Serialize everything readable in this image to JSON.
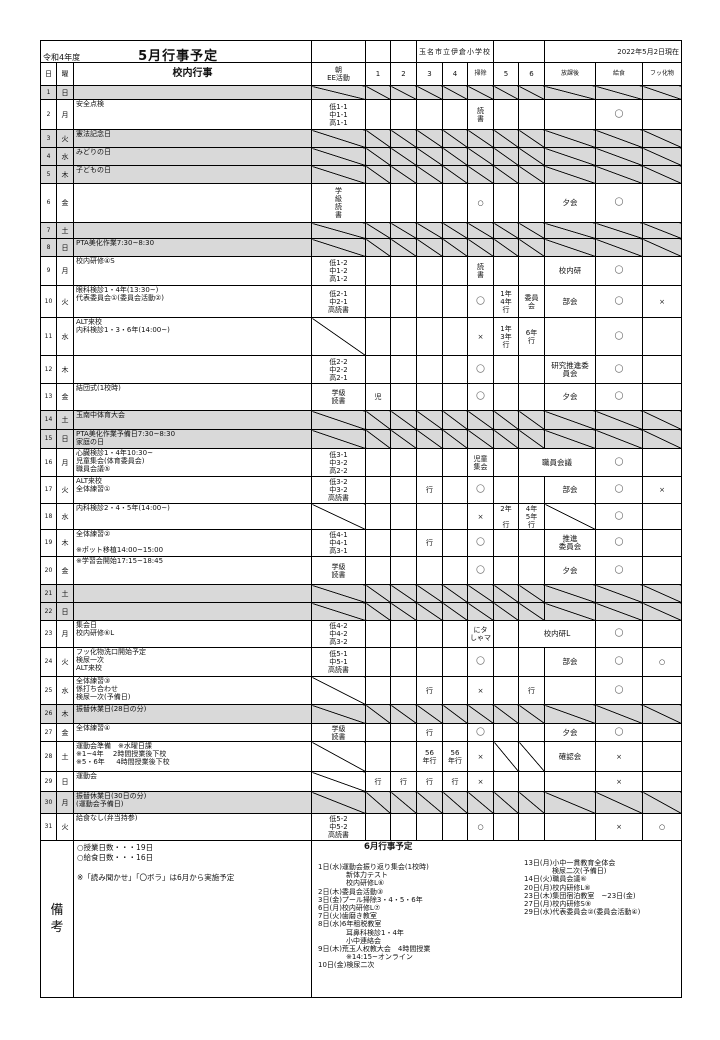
{
  "header": {
    "fiscal_year": "令和4年度",
    "title": "5月行事予定",
    "school": "玉名市立伊倉小学校",
    "as_of": "2022年5月2日現在"
  },
  "columns": {
    "day": "日",
    "dow": "曜",
    "events": "校内行事",
    "morning": "朝\nEE活動",
    "p1": "1",
    "p2": "2",
    "p3": "3",
    "p4": "4",
    "clean": "掃除",
    "p5": "5",
    "p6": "6",
    "after": "放課後",
    "lunch": "給食",
    "fluoride": "フッ化物"
  },
  "colors": {
    "holiday_row": "#d9d9d9",
    "border": "#000000"
  },
  "rows": [
    {
      "day": "1",
      "dow": "日",
      "holiday": true,
      "events": []
    },
    {
      "day": "2",
      "dow": "月",
      "events": [
        "安全点検"
      ],
      "morning": "低1-1\n中1-1\n高1-1",
      "clean": "読\n書",
      "lunch": "〇"
    },
    {
      "day": "3",
      "dow": "火",
      "holiday": true,
      "events": [
        "憲法記念日"
      ]
    },
    {
      "day": "4",
      "dow": "水",
      "holiday": true,
      "events": [
        "みどりの日"
      ]
    },
    {
      "day": "5",
      "dow": "木",
      "holiday": true,
      "events": [
        "子どもの日"
      ]
    },
    {
      "day": "6",
      "dow": "金",
      "events": [],
      "morning": "学\n級\n読\n書",
      "clean": "○",
      "after": "夕会",
      "lunch": "〇"
    },
    {
      "day": "7",
      "dow": "土",
      "holiday": true,
      "events": []
    },
    {
      "day": "8",
      "dow": "日",
      "holiday": true,
      "events": [
        "PTA美化作業7:30~8:30"
      ]
    },
    {
      "day": "9",
      "dow": "月",
      "events": [
        "校内研修④S"
      ],
      "morning": "低1-2\n中1-2\n高1-2",
      "clean": "読\n書",
      "after": "校内研",
      "lunch": "〇"
    },
    {
      "day": "10",
      "dow": "火",
      "events": [
        "眼科検診1・4年(13:30~)",
        "代表委員会①(委員会活動②)"
      ],
      "morning": "低2-1\n中2-1\n高読書",
      "clean": "〇",
      "p5": "1年\n4年\n行",
      "p6": "委員\n会",
      "after": "部会",
      "lunch": "〇",
      "fluoride": "×"
    },
    {
      "day": "11",
      "dow": "水",
      "events": [
        "ALT来校",
        "内科検診1・3・6年(14:00~)"
      ],
      "na": [
        "morning"
      ],
      "clean": "×",
      "p5": "1年\n3年\n行",
      "p6": "6年\n行",
      "lunch": "〇"
    },
    {
      "day": "12",
      "dow": "木",
      "events": [],
      "morning": "低2-2\n中2-2\n高2-1",
      "clean": "〇",
      "after": "研究推進委\n員会",
      "lunch": "〇"
    },
    {
      "day": "13",
      "dow": "金",
      "events": [
        "結団式(1校時)"
      ],
      "morning": "学級\n読書",
      "p1": "児",
      "clean": "〇",
      "after": "夕会",
      "lunch": "〇"
    },
    {
      "day": "14",
      "dow": "土",
      "holiday": true,
      "events": [
        "玉南中体育大会"
      ]
    },
    {
      "day": "15",
      "dow": "日",
      "holiday": true,
      "events": [
        "PTA美化作業予備日7:30~8:30",
        "家庭の日"
      ]
    },
    {
      "day": "16",
      "dow": "月",
      "events": [
        "心臓検診1・4年10:30~",
        "児童集会(体育委員会)",
        "職員会議⑤"
      ],
      "morning": "低3-1\n中3-2\n高2-2",
      "clean": "児童\n集会",
      "after": "職員会議",
      "lunch": "〇"
    },
    {
      "day": "17",
      "dow": "火",
      "events": [
        "ALT来校",
        "全体練習①"
      ],
      "morning": "低3-2\n中3-2\n高読書",
      "p3": "行",
      "clean": "〇",
      "after": "部会",
      "lunch": "〇",
      "fluoride": "×"
    },
    {
      "day": "18",
      "dow": "水",
      "events": [
        "内科検診2・4・5年(14:00~)"
      ],
      "na": [
        "morning",
        "after"
      ],
      "clean": "×",
      "p5": "2年\n\n行",
      "p6": "4年\n5年\n行",
      "lunch": "〇"
    },
    {
      "day": "19",
      "dow": "木",
      "events": [
        "全体練習②",
        "",
        "※ポット移植14:00~15:00"
      ],
      "morning": "低4-1\n中4-1\n高3-1",
      "p3": "行",
      "clean": "〇",
      "after": "推進\n委員会",
      "lunch": "〇"
    },
    {
      "day": "20",
      "dow": "金",
      "events": [
        "※学習会開始17:15~18:45"
      ],
      "morning": "学級\n読書",
      "clean": "〇",
      "after": "夕会",
      "lunch": "〇"
    },
    {
      "day": "21",
      "dow": "土",
      "holiday": true,
      "events": []
    },
    {
      "day": "22",
      "dow": "日",
      "holiday": true,
      "events": []
    },
    {
      "day": "23",
      "dow": "月",
      "events": [
        "集会日",
        "校内研修⑥L"
      ],
      "morning": "低4-2\n中4-2\n高3-2",
      "clean": "にタ\nしゃマ",
      "after": "校内研L",
      "lunch": "〇"
    },
    {
      "day": "24",
      "dow": "火",
      "events": [
        "フッ化物洗口開始予定",
        "検尿一次",
        "ALT来校"
      ],
      "morning": "低5-1\n中5-1\n高読書",
      "clean": "〇",
      "after": "部会",
      "lunch": "〇",
      "fluoride": "○"
    },
    {
      "day": "25",
      "dow": "水",
      "events": [
        "全体練習③",
        "係打ち合わせ",
        "検尿一次(予備日)"
      ],
      "na": [
        "morning"
      ],
      "p3": "行",
      "clean": "×",
      "p6": "行",
      "lunch": "〇"
    },
    {
      "day": "26",
      "dow": "木",
      "holiday": true,
      "events": [
        "振替休業日(28日の分)"
      ]
    },
    {
      "day": "27",
      "dow": "金",
      "events": [
        "全体練習④"
      ],
      "morning": "学級\n読書",
      "p3": "行",
      "clean": "〇",
      "after": "夕会",
      "lunch": "〇"
    },
    {
      "day": "28",
      "dow": "土",
      "events": [
        "運動会準備　※水曜日課",
        "※1~4年　 2時間授業後下校",
        "※5・6年　  4時間授業後下校"
      ],
      "na": [
        "morning",
        "p5",
        "p6"
      ],
      "p3": "56\n年行",
      "p4": "56\n年行",
      "clean": "×",
      "after": "確認会",
      "lunch": "×"
    },
    {
      "day": "29",
      "dow": "日",
      "events": [
        "運動会"
      ],
      "na": [
        "morning"
      ],
      "p1": "行",
      "p2": "行",
      "p3": "行",
      "p4": "行",
      "clean": "×",
      "lunch": "×"
    },
    {
      "day": "30",
      "dow": "月",
      "holiday": true,
      "events": [
        "振替休業日(30日の分)",
        "(運動会予備日)"
      ]
    },
    {
      "day": "31",
      "dow": "火",
      "events": [
        "給食なし(弁当持参)"
      ],
      "morning": "低5-2\n中5-2\n高読書",
      "clean": "○",
      "lunch": "×",
      "fluoride": "○"
    }
  ],
  "footer": {
    "label": "備\n考",
    "notes": [
      "○授業日数・・・19日",
      "○給食日数・・・16日",
      "",
      "※「読み聞かせ」「〇ボラ」は6月から実施予定"
    ],
    "june_title": "6月行事予定",
    "june_left": [
      "1日(水)運動会振り返り集会(1校時)",
      "　　　　新体力テスト",
      "　　　　校内研修L⑥",
      "2日(木)委員会活動③",
      "3日(金)プール掃除3・4・5・6年",
      "6日(月)校内研修L⑦",
      "7日(火)歯磨き教室",
      "8日(水)6年租税教室",
      "　　　　耳鼻科検診1・4年",
      "　　　　小中連絡会",
      "9日(木)荒玉人权教大会　4時間授業",
      "　　　　※14:15~オンライン",
      "10日(金)検尿二次"
    ],
    "june_right": [
      "13日(月)小中一貫教育全体会",
      "　　　　検尿二次(予備日)",
      "14日(火)職員会議⑥",
      "20日(月)校内研修L⑧",
      "23日(木)集団宿泊教室　~23日(金)",
      "27日(月)校内研修S⑨",
      "29日(水)代表委員会②(委員会活動④)"
    ]
  }
}
